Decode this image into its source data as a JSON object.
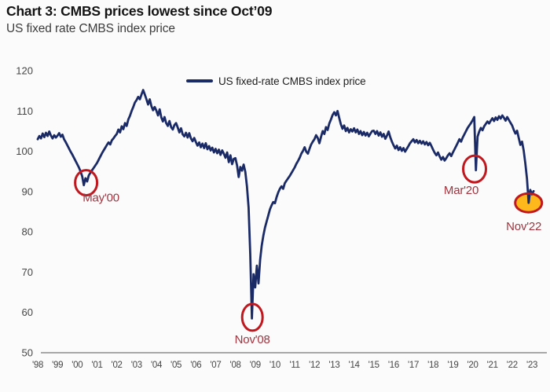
{
  "header": {
    "title": "Chart 3: CMBS prices lowest since Oct’09",
    "subtitle": "US fixed rate CMBS index price"
  },
  "chart_data": {
    "type": "line",
    "title": "Chart 3: CMBS prices lowest since Oct’09",
    "subtitle": "US fixed rate CMBS index price",
    "xlabel": "",
    "ylabel": "",
    "grid": false,
    "legend": {
      "position": "top-center",
      "entries": [
        "US fixed-rate CMBS index price"
      ]
    },
    "ylim": [
      50,
      120
    ],
    "y_ticks": [
      50,
      60,
      70,
      80,
      90,
      100,
      110,
      120
    ],
    "x_start_year": 1998,
    "x_step_months": 1,
    "x_tick_labels": [
      "'98",
      "'99",
      "'00",
      "'01",
      "'02",
      "'03",
      "'04",
      "'05",
      "'06",
      "'07",
      "'08",
      "'09",
      "'10",
      "'11",
      "'12",
      "'13",
      "'14",
      "'15",
      "'16",
      "'17",
      "'18",
      "'19",
      "'20",
      "'21",
      "'22",
      "'23"
    ],
    "series": [
      {
        "name": "US fixed-rate CMBS index price",
        "color": "#1a2a66",
        "values": [
          103.0,
          103.8,
          103.2,
          104.4,
          103.5,
          104.6,
          103.8,
          104.9,
          103.9,
          103.2,
          104.0,
          103.4,
          103.9,
          104.5,
          103.6,
          104.1,
          103.0,
          102.3,
          101.5,
          100.7,
          99.9,
          99.2,
          98.4,
          97.6,
          96.8,
          96.0,
          95.0,
          93.8,
          91.6,
          93.3,
          92.5,
          94.0,
          94.7,
          95.3,
          95.9,
          96.5,
          97.1,
          97.9,
          98.7,
          99.5,
          100.2,
          100.9,
          101.6,
          102.2,
          101.7,
          102.7,
          103.2,
          103.8,
          104.3,
          105.4,
          104.7,
          106.2,
          105.5,
          107.0,
          106.3,
          107.9,
          108.8,
          110.0,
          111.0,
          112.1,
          112.7,
          113.5,
          112.9,
          114.1,
          115.2,
          114.1,
          112.9,
          111.6,
          112.9,
          111.2,
          110.2,
          111.0,
          110.1,
          108.9,
          110.4,
          108.4,
          107.4,
          108.5,
          107.0,
          106.3,
          107.5,
          106.0,
          105.4,
          106.5,
          107.0,
          105.9,
          104.7,
          105.7,
          104.2,
          103.7,
          104.6,
          103.4,
          104.5,
          103.2,
          102.5,
          103.3,
          102.3,
          101.4,
          102.2,
          101.0,
          101.9,
          100.8,
          102.0,
          100.5,
          101.3,
          100.2,
          100.9,
          99.7,
          100.6,
          99.5,
          100.4,
          99.1,
          100.2,
          99.4,
          98.4,
          99.7,
          97.3,
          99.0,
          96.8,
          98.1,
          98.3,
          96.5,
          93.6,
          96.1,
          95.2,
          96.7,
          94.9,
          91.3,
          86.0,
          74.5,
          58.5,
          69.5,
          66.2,
          71.6,
          67.2,
          73.1,
          76.6,
          79.1,
          81.1,
          82.6,
          84.1,
          85.6,
          86.6,
          87.4,
          87.1,
          88.6,
          89.8,
          90.7,
          91.3,
          90.7,
          92.1,
          92.7,
          93.3,
          93.9,
          94.6,
          95.3,
          96.0,
          96.9,
          97.6,
          98.4,
          99.4,
          100.1,
          101.0,
          99.9,
          99.4,
          100.6,
          101.7,
          102.4,
          103.0,
          104.0,
          103.3,
          102.0,
          103.6,
          105.0,
          104.3,
          106.0,
          105.3,
          106.9,
          107.9,
          109.0,
          109.7,
          108.9,
          110.0,
          108.3,
          106.7,
          105.6,
          106.4,
          105.0,
          105.8,
          104.7,
          105.5,
          104.9,
          105.7,
          104.7,
          105.4,
          104.3,
          105.0,
          104.0,
          104.8,
          103.9,
          104.6,
          103.7,
          104.4,
          105.0,
          105.1,
          104.3,
          105.0,
          103.9,
          104.7,
          103.6,
          104.3,
          103.1,
          103.9,
          104.9,
          103.5,
          102.4,
          101.5,
          100.7,
          101.4,
          100.3,
          101.0,
          100.1,
          100.8,
          99.9,
          100.6,
          101.3,
          102.0,
          102.5,
          103.0,
          102.2,
          102.8,
          102.0,
          102.6,
          101.9,
          102.5,
          101.7,
          102.3,
          101.5,
          102.1,
          101.3,
          100.4,
          99.6,
          99.0,
          99.7,
          98.7,
          97.9,
          98.6,
          97.7,
          98.3,
          99.0,
          99.5,
          98.8,
          99.7,
          100.5,
          101.3,
          102.1,
          103.0,
          102.4,
          103.4,
          104.2,
          105.0,
          105.8,
          106.4,
          107.0,
          107.7,
          108.5,
          95.3,
          103.6,
          104.9,
          105.8,
          105.2,
          106.2,
          106.8,
          107.4,
          106.9,
          107.6,
          108.2,
          107.5,
          108.4,
          107.8,
          108.7,
          108.1,
          108.9,
          108.3,
          107.6,
          108.5,
          107.8,
          107.1,
          106.4,
          105.3,
          104.4,
          105.1,
          103.3,
          101.6,
          102.4,
          100.2,
          97.0,
          93.2,
          87.2,
          90.4,
          89.3,
          90.1
        ]
      }
    ],
    "annotations": [
      {
        "label": "May'00",
        "year": 2000.45,
        "value": 92.2,
        "circled": true,
        "highlighted": false
      },
      {
        "label": "Nov'08",
        "year": 2008.86,
        "value": 58.8,
        "circled": true,
        "highlighted": false
      },
      {
        "label": "Mar'20",
        "year": 2020.1,
        "value": 95.6,
        "circled": true,
        "highlighted": false
      },
      {
        "label": "Nov'22",
        "year": 2022.83,
        "value": 87.2,
        "circled": true,
        "highlighted": true
      }
    ],
    "colors": {
      "line": "#1a2a66",
      "annotation_circle": "#c0181f",
      "annotation_text": "#a03540",
      "highlight_fill": "#ffb81c",
      "axis_line": "#8c8c8c",
      "tick_text": "#454545"
    }
  }
}
